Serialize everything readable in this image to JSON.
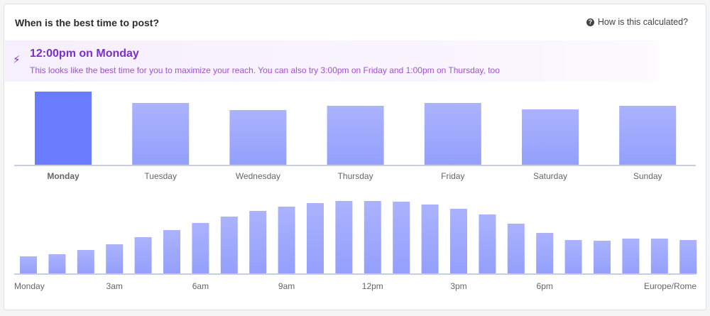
{
  "header": {
    "title": "When is the best time to post?",
    "help_label": "How is this calculated?",
    "help_icon": "question-circle-icon"
  },
  "banner": {
    "icon": "lightning-bolt-icon",
    "title": "12:00pm on Monday",
    "text": "This looks like the best time for you to maximize your reach. You can also try 3:00pm on Friday and 1:00pm on Thursday, too"
  },
  "colors": {
    "bar": "#a3acfd",
    "bar_selected": "#6b7bff",
    "accent": "#7a2fc8"
  },
  "chart_data": [
    {
      "type": "bar",
      "categories": [
        "Monday",
        "Tuesday",
        "Wednesday",
        "Thursday",
        "Friday",
        "Saturday",
        "Sunday"
      ],
      "values": [
        104,
        88,
        78,
        84,
        88,
        79,
        84
      ],
      "selected": "Monday"
    },
    {
      "type": "bar",
      "categories": [
        "0",
        "1",
        "2",
        "3",
        "4",
        "5",
        "6",
        "7",
        "8",
        "9",
        "10",
        "11",
        "12",
        "13",
        "14",
        "15",
        "16",
        "17",
        "18",
        "19",
        "20",
        "21",
        "22",
        "23"
      ],
      "values": [
        25,
        28,
        34,
        42,
        52,
        62,
        72,
        81,
        89,
        95,
        100,
        103,
        103,
        102,
        98,
        92,
        84,
        71,
        58,
        48,
        47,
        50,
        50,
        48
      ],
      "tick_labels": [
        {
          "at": 0,
          "label": "Monday"
        },
        {
          "at": 3,
          "label": "3am"
        },
        {
          "at": 6,
          "label": "6am"
        },
        {
          "at": 9,
          "label": "9am"
        },
        {
          "at": 12,
          "label": "12pm"
        },
        {
          "at": 15,
          "label": "3pm"
        },
        {
          "at": 18,
          "label": "6pm"
        }
      ],
      "timezone": "Europe/Rome"
    }
  ]
}
